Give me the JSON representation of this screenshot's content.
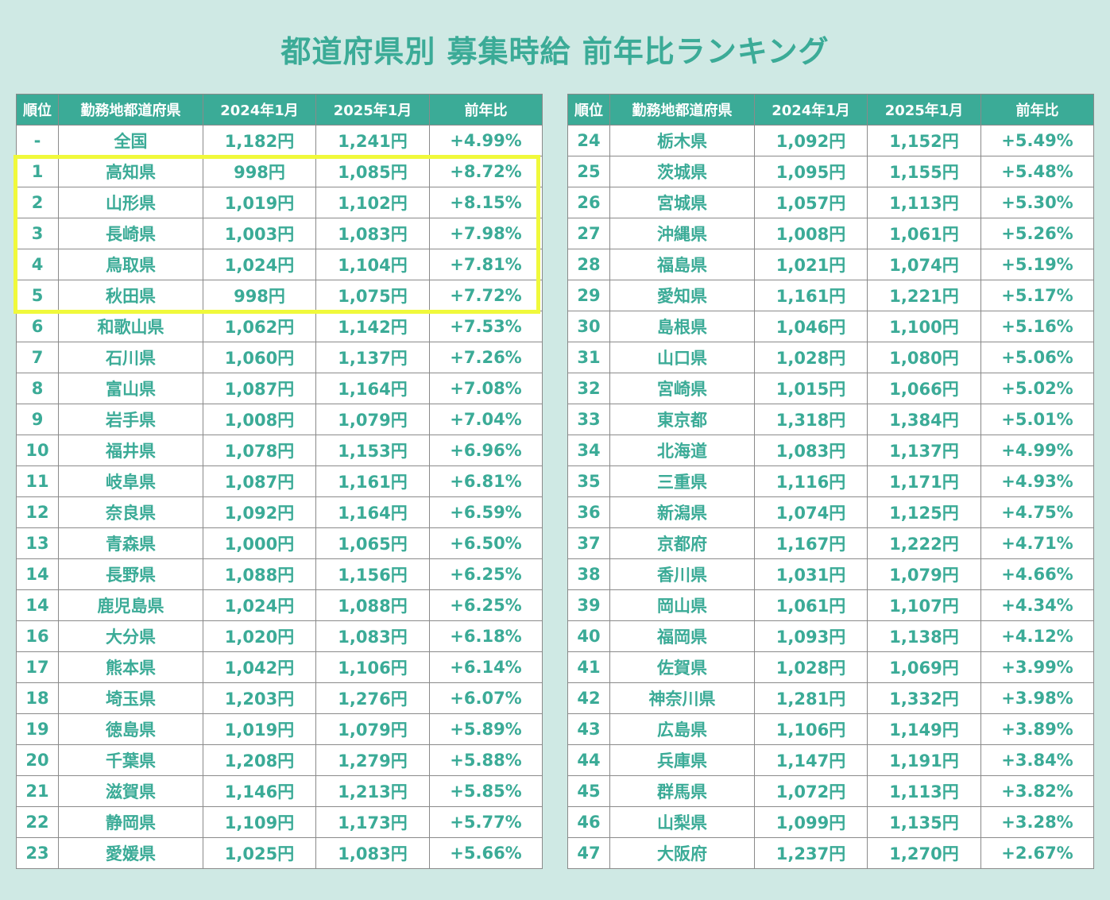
{
  "title": "都道府県別 募集時給 前年比ランキング",
  "colors": {
    "accent": "#3bab97",
    "background": "#cfe9e4",
    "highlight": "#f0f93b"
  },
  "headers": [
    "順位",
    "勤務地都道府県",
    "2024年1月",
    "2025年1月",
    "前年比"
  ],
  "left_rows": [
    [
      "-",
      "全国",
      "1,182円",
      "1,241円",
      "+4.99%"
    ],
    [
      "1",
      "高知県",
      "998円",
      "1,085円",
      "+8.72%"
    ],
    [
      "2",
      "山形県",
      "1,019円",
      "1,102円",
      "+8.15%"
    ],
    [
      "3",
      "長崎県",
      "1,003円",
      "1,083円",
      "+7.98%"
    ],
    [
      "4",
      "鳥取県",
      "1,024円",
      "1,104円",
      "+7.81%"
    ],
    [
      "5",
      "秋田県",
      "998円",
      "1,075円",
      "+7.72%"
    ],
    [
      "6",
      "和歌山県",
      "1,062円",
      "1,142円",
      "+7.53%"
    ],
    [
      "7",
      "石川県",
      "1,060円",
      "1,137円",
      "+7.26%"
    ],
    [
      "8",
      "富山県",
      "1,087円",
      "1,164円",
      "+7.08%"
    ],
    [
      "9",
      "岩手県",
      "1,008円",
      "1,079円",
      "+7.04%"
    ],
    [
      "10",
      "福井県",
      "1,078円",
      "1,153円",
      "+6.96%"
    ],
    [
      "11",
      "岐阜県",
      "1,087円",
      "1,161円",
      "+6.81%"
    ],
    [
      "12",
      "奈良県",
      "1,092円",
      "1,164円",
      "+6.59%"
    ],
    [
      "13",
      "青森県",
      "1,000円",
      "1,065円",
      "+6.50%"
    ],
    [
      "14",
      "長野県",
      "1,088円",
      "1,156円",
      "+6.25%"
    ],
    [
      "14",
      "鹿児島県",
      "1,024円",
      "1,088円",
      "+6.25%"
    ],
    [
      "16",
      "大分県",
      "1,020円",
      "1,083円",
      "+6.18%"
    ],
    [
      "17",
      "熊本県",
      "1,042円",
      "1,106円",
      "+6.14%"
    ],
    [
      "18",
      "埼玉県",
      "1,203円",
      "1,276円",
      "+6.07%"
    ],
    [
      "19",
      "徳島県",
      "1,019円",
      "1,079円",
      "+5.89%"
    ],
    [
      "20",
      "千葉県",
      "1,208円",
      "1,279円",
      "+5.88%"
    ],
    [
      "21",
      "滋賀県",
      "1,146円",
      "1,213円",
      "+5.85%"
    ],
    [
      "22",
      "静岡県",
      "1,109円",
      "1,173円",
      "+5.77%"
    ],
    [
      "23",
      "愛媛県",
      "1,025円",
      "1,083円",
      "+5.66%"
    ]
  ],
  "right_rows": [
    [
      "24",
      "栃木県",
      "1,092円",
      "1,152円",
      "+5.49%"
    ],
    [
      "25",
      "茨城県",
      "1,095円",
      "1,155円",
      "+5.48%"
    ],
    [
      "26",
      "宮城県",
      "1,057円",
      "1,113円",
      "+5.30%"
    ],
    [
      "27",
      "沖縄県",
      "1,008円",
      "1,061円",
      "+5.26%"
    ],
    [
      "28",
      "福島県",
      "1,021円",
      "1,074円",
      "+5.19%"
    ],
    [
      "29",
      "愛知県",
      "1,161円",
      "1,221円",
      "+5.17%"
    ],
    [
      "30",
      "島根県",
      "1,046円",
      "1,100円",
      "+5.16%"
    ],
    [
      "31",
      "山口県",
      "1,028円",
      "1,080円",
      "+5.06%"
    ],
    [
      "32",
      "宮崎県",
      "1,015円",
      "1,066円",
      "+5.02%"
    ],
    [
      "33",
      "東京都",
      "1,318円",
      "1,384円",
      "+5.01%"
    ],
    [
      "34",
      "北海道",
      "1,083円",
      "1,137円",
      "+4.99%"
    ],
    [
      "35",
      "三重県",
      "1,116円",
      "1,171円",
      "+4.93%"
    ],
    [
      "36",
      "新潟県",
      "1,074円",
      "1,125円",
      "+4.75%"
    ],
    [
      "37",
      "京都府",
      "1,167円",
      "1,222円",
      "+4.71%"
    ],
    [
      "38",
      "香川県",
      "1,031円",
      "1,079円",
      "+4.66%"
    ],
    [
      "39",
      "岡山県",
      "1,061円",
      "1,107円",
      "+4.34%"
    ],
    [
      "40",
      "福岡県",
      "1,093円",
      "1,138円",
      "+4.12%"
    ],
    [
      "41",
      "佐賀県",
      "1,028円",
      "1,069円",
      "+3.99%"
    ],
    [
      "42",
      "神奈川県",
      "1,281円",
      "1,332円",
      "+3.98%"
    ],
    [
      "43",
      "広島県",
      "1,106円",
      "1,149円",
      "+3.89%"
    ],
    [
      "44",
      "兵庫県",
      "1,147円",
      "1,191円",
      "+3.84%"
    ],
    [
      "45",
      "群馬県",
      "1,072円",
      "1,113円",
      "+3.82%"
    ],
    [
      "46",
      "山梨県",
      "1,099円",
      "1,135円",
      "+3.28%"
    ],
    [
      "47",
      "大阪府",
      "1,237円",
      "1,270円",
      "+2.67%"
    ]
  ]
}
